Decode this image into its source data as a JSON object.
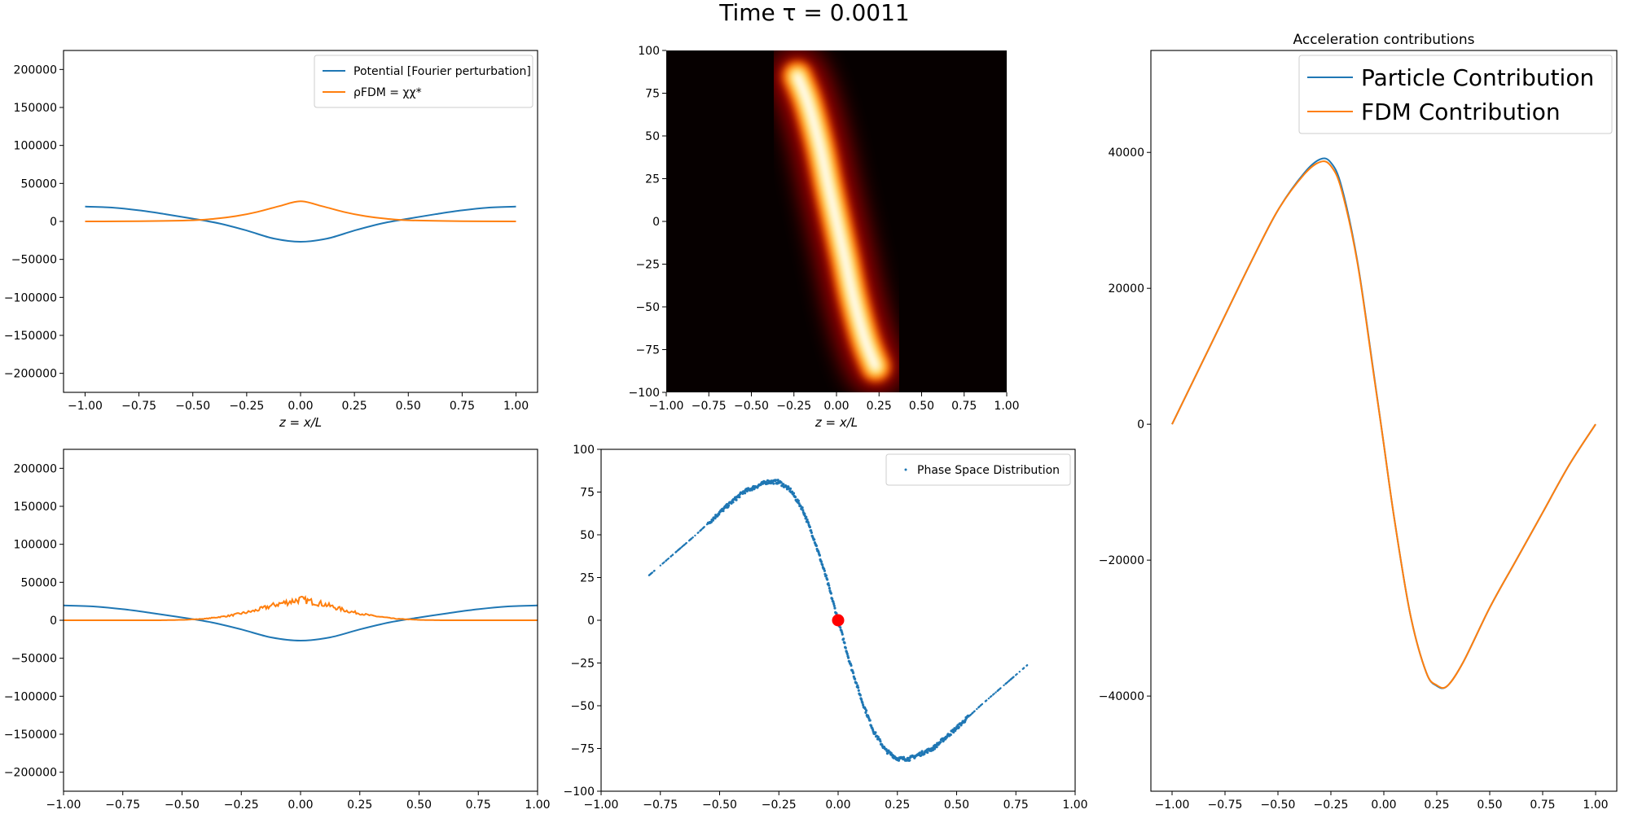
{
  "figure": {
    "suptitle": "Time τ = 0.0011"
  },
  "colors": {
    "potential": "#1f77b4",
    "density": "#ff7f0e",
    "marker": "#ff0000",
    "heatmap_low": "#060000",
    "heatmap_high": "#ffffff"
  },
  "chart_data": [
    {
      "id": "fdm-potential",
      "type": "line",
      "title": "",
      "xlabel": "z = x/L",
      "ylabel": "",
      "xlim": [
        -1.1,
        1.1
      ],
      "ylim": [
        -225000,
        225000
      ],
      "xticks": [
        "−1.00",
        "−0.75",
        "−0.50",
        "−0.25",
        "0.00",
        "0.25",
        "0.50",
        "0.75",
        "1.00"
      ],
      "yticks": [
        "−200000",
        "−150000",
        "−100000",
        "−50000",
        "0",
        "50000",
        "100000",
        "150000",
        "200000"
      ],
      "legend": "top-right",
      "series": [
        {
          "name": "Potential [Fourier perturbation]",
          "color": "#1f77b4",
          "x": [
            -1.0,
            -0.875,
            -0.75,
            -0.625,
            -0.5,
            -0.375,
            -0.25,
            -0.125,
            0.0,
            0.125,
            0.25,
            0.375,
            0.5,
            0.625,
            0.75,
            0.875,
            1.0
          ],
          "y": [
            19500,
            18200,
            14600,
            9400,
            3600,
            -2800,
            -12000,
            -22500,
            -26800,
            -22500,
            -12000,
            -2800,
            3600,
            9400,
            14600,
            18200,
            19500
          ]
        },
        {
          "name": "ρFDM = χχ*",
          "color": "#ff7f0e",
          "x": [
            -1.0,
            -0.75,
            -0.5,
            -0.4,
            -0.3,
            -0.2,
            -0.1,
            0.0,
            0.1,
            0.2,
            0.3,
            0.4,
            0.5,
            0.75,
            1.0
          ],
          "y": [
            0,
            300,
            1500,
            3500,
            7000,
            12500,
            20000,
            26500,
            20000,
            12500,
            7000,
            3500,
            1500,
            300,
            0
          ]
        }
      ]
    },
    {
      "id": "fdm-phase-space",
      "type": "heatmap",
      "title": "",
      "xlabel": "z = x/L",
      "ylabel": "",
      "xlim": [
        -1.0,
        1.0
      ],
      "ylim": [
        -100,
        100
      ],
      "xticks": [
        "−1.00",
        "−0.75",
        "−0.50",
        "−0.25",
        "0.00",
        "0.25",
        "0.50",
        "0.75",
        "1.00"
      ],
      "yticks": [
        "−100",
        "−75",
        "−50",
        "−25",
        "0",
        "25",
        "50",
        "75",
        "100"
      ],
      "ridge": {
        "x": [
          -0.23,
          -0.17,
          -0.1,
          -0.05,
          0.0,
          0.05,
          0.1,
          0.17,
          0.23
        ],
        "y": [
          85,
          70,
          45,
          22,
          0,
          -22,
          -45,
          -70,
          -85
        ]
      }
    },
    {
      "id": "acceleration",
      "type": "line",
      "title": "Acceleration contributions",
      "xlabel": "",
      "ylabel": "",
      "xlim": [
        -1.1,
        1.1
      ],
      "ylim": [
        -54000,
        55000
      ],
      "xticks": [
        "−1.00",
        "−0.75",
        "−0.50",
        "−0.25",
        "0.00",
        "0.25",
        "0.50",
        "0.75",
        "1.00"
      ],
      "yticks": [
        "−40000",
        "−20000",
        "0",
        "20000",
        "40000"
      ],
      "legend": "top-right",
      "series": [
        {
          "name": "Particle Contribution",
          "color": "#1f77b4",
          "x": [
            -1.0,
            -0.875,
            -0.75,
            -0.625,
            -0.5,
            -0.375,
            -0.3,
            -0.25,
            -0.2,
            -0.125,
            -0.05,
            0.0,
            0.05,
            0.125,
            0.2,
            0.25,
            0.3,
            0.375,
            0.5,
            0.625,
            0.75,
            0.875,
            1.0
          ],
          "y": [
            0,
            8000,
            16000,
            24000,
            31500,
            37000,
            39000,
            38500,
            35000,
            24000,
            8000,
            -3000,
            -14000,
            -28000,
            -36500,
            -38500,
            -38500,
            -35000,
            -27000,
            -20000,
            -13000,
            -6000,
            0
          ]
        },
        {
          "name": "FDM Contribution",
          "color": "#ff7f0e",
          "x": [
            -1.0,
            -0.875,
            -0.75,
            -0.625,
            -0.5,
            -0.375,
            -0.3,
            -0.25,
            -0.2,
            -0.125,
            -0.05,
            0.0,
            0.05,
            0.125,
            0.2,
            0.25,
            0.3,
            0.375,
            0.5,
            0.625,
            0.75,
            0.875,
            1.0
          ],
          "y": [
            0,
            8000,
            16000,
            24000,
            31500,
            36800,
            38600,
            38000,
            34500,
            23800,
            7800,
            -3000,
            -14000,
            -28000,
            -36500,
            -38400,
            -38500,
            -35000,
            -27000,
            -20000,
            -13000,
            -6000,
            0
          ]
        }
      ]
    },
    {
      "id": "particle-potential",
      "type": "line",
      "title": "",
      "xlabel": "",
      "ylabel": "",
      "xlim": [
        -1.0,
        1.0
      ],
      "ylim": [
        -225000,
        225000
      ],
      "xticks": [
        "−1.00",
        "−0.75",
        "−0.50",
        "−0.25",
        "0.00",
        "0.25",
        "0.50",
        "0.75",
        "1.00"
      ],
      "yticks": [
        "−200000",
        "−150000",
        "−100000",
        "−50000",
        "0",
        "50000",
        "100000",
        "150000",
        "200000"
      ],
      "series": [
        {
          "color": "#1f77b4",
          "x": [
            -1.0,
            -0.875,
            -0.75,
            -0.625,
            -0.5,
            -0.375,
            -0.25,
            -0.125,
            0.0,
            0.125,
            0.25,
            0.375,
            0.5,
            0.625,
            0.75,
            0.875,
            1.0
          ],
          "y": [
            19500,
            18200,
            14600,
            9400,
            3600,
            -2800,
            -12000,
            -22500,
            -26800,
            -22500,
            -12000,
            -2800,
            3600,
            9400,
            14600,
            18200,
            19500
          ]
        },
        {
          "color": "#ff7f0e",
          "x": [
            -1.0,
            -0.6,
            -0.5,
            -0.4,
            -0.3,
            -0.2,
            -0.1,
            0.0,
            0.1,
            0.2,
            0.3,
            0.4,
            0.5,
            0.6,
            1.0
          ],
          "y": [
            0,
            0,
            500,
            2000,
            6000,
            12000,
            21000,
            27500,
            21000,
            12000,
            6000,
            2000,
            500,
            0,
            0
          ],
          "noisy": true
        }
      ]
    },
    {
      "id": "particle-phase-space",
      "type": "scatter",
      "title": "",
      "xlabel": "",
      "ylabel": "",
      "xlim": [
        -1.0,
        1.0
      ],
      "ylim": [
        -100,
        100
      ],
      "xticks": [
        "−1.00",
        "−0.75",
        "−0.50",
        "−0.25",
        "0.00",
        "0.25",
        "0.50",
        "0.75",
        "1.00"
      ],
      "yticks": [
        "−100",
        "−75",
        "−50",
        "−25",
        "0",
        "25",
        "50",
        "75",
        "100"
      ],
      "legend": "top-right",
      "series": [
        {
          "name": "Phase Space Distribution",
          "color": "#1f77b4",
          "x": [
            -0.8,
            -0.7,
            -0.6,
            -0.5,
            -0.4,
            -0.3,
            -0.25,
            -0.2,
            -0.15,
            -0.1,
            -0.05,
            0.0,
            0.05,
            0.1,
            0.15,
            0.2,
            0.25,
            0.3,
            0.4,
            0.5,
            0.6,
            0.7,
            0.8
          ],
          "y": [
            26,
            38,
            50,
            63,
            75,
            81,
            81,
            76,
            65,
            47,
            25,
            0,
            -25,
            -47,
            -65,
            -76,
            -81,
            -81,
            -75,
            -63,
            -50,
            -38,
            -26
          ]
        }
      ],
      "marker": {
        "x": 0.0,
        "y": 0.0,
        "color": "#ff0000"
      }
    }
  ]
}
